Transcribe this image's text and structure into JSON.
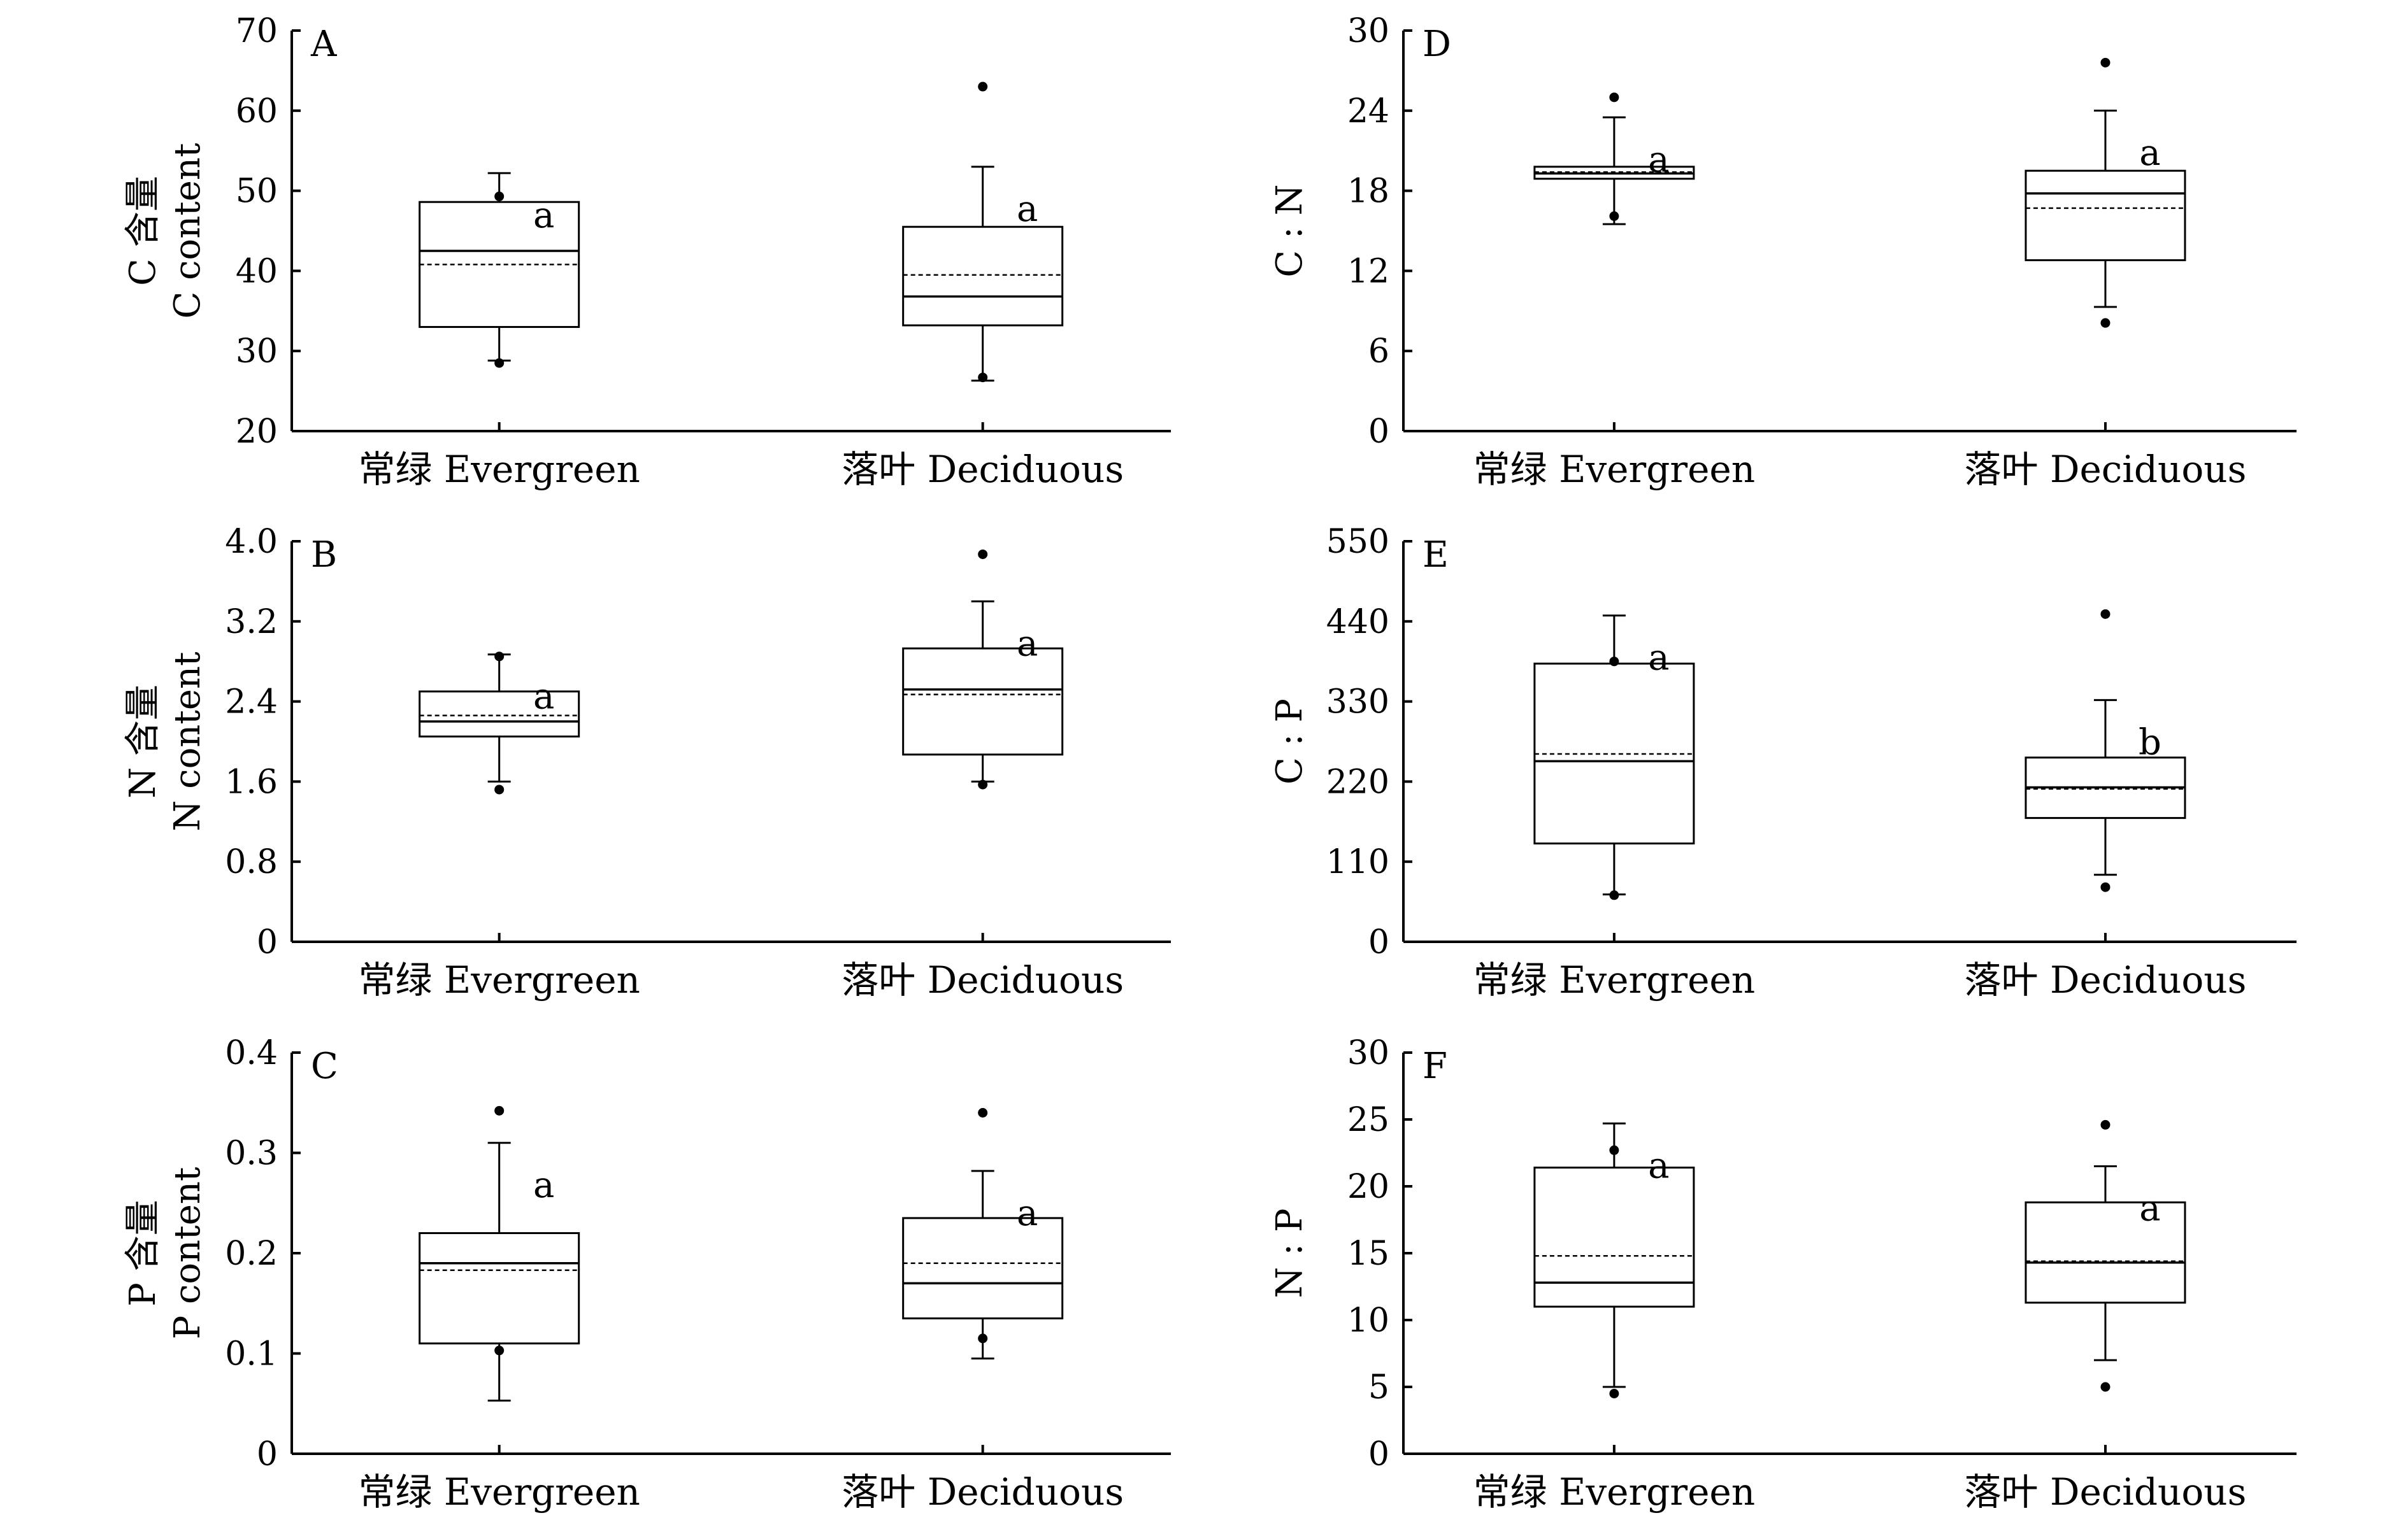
{
  "chart_data": [
    {
      "type": "box",
      "panel": "A",
      "ylabel_lines": [
        "C 含量",
        "C content"
      ],
      "ylim": [
        20,
        70
      ],
      "yticks": [
        20,
        30,
        40,
        50,
        60,
        70
      ],
      "categories": [
        "常绿 Evergreen",
        "落叶 Deciduous"
      ],
      "groups": [
        {
          "whisker_low": 28.8,
          "q1": 33.0,
          "median": 42.5,
          "mean": 40.8,
          "q3": 48.6,
          "whisker_high": 52.2,
          "outliers": [
            49.3,
            28.5
          ],
          "letter": "a"
        },
        {
          "whisker_low": 26.3,
          "q1": 33.2,
          "median": 36.8,
          "mean": 39.5,
          "q3": 45.5,
          "whisker_high": 53.0,
          "outliers": [
            63.0,
            26.7
          ],
          "letter": "a"
        }
      ]
    },
    {
      "type": "box",
      "panel": "B",
      "ylabel_lines": [
        "N 含量",
        "N content"
      ],
      "ylim": [
        0,
        4.0
      ],
      "yticks": [
        "0",
        "0.8",
        "1.6",
        "2.4",
        "3.2",
        "4.0"
      ],
      "categories": [
        "常绿 Evergreen",
        "落叶 Deciduous"
      ],
      "groups": [
        {
          "whisker_low": 1.6,
          "q1": 2.05,
          "median": 2.2,
          "mean": 2.26,
          "q3": 2.5,
          "whisker_high": 2.87,
          "outliers": [
            2.85,
            1.52
          ],
          "letter": "a"
        },
        {
          "whisker_low": 1.6,
          "q1": 1.87,
          "median": 2.52,
          "mean": 2.47,
          "q3": 2.93,
          "whisker_high": 3.4,
          "outliers": [
            3.87,
            1.57
          ],
          "letter": "a"
        }
      ]
    },
    {
      "type": "box",
      "panel": "C",
      "ylabel_lines": [
        "P 含量",
        "P content"
      ],
      "ylim": [
        0,
        0.4
      ],
      "yticks": [
        "0",
        "0.1",
        "0.2",
        "0.3",
        "0.4"
      ],
      "categories": [
        "常绿 Evergreen",
        "落叶 Deciduous"
      ],
      "groups": [
        {
          "whisker_low": 0.053,
          "q1": 0.11,
          "median": 0.19,
          "mean": 0.183,
          "q3": 0.22,
          "whisker_high": 0.31,
          "outliers": [
            0.342,
            0.103
          ],
          "letter": "a"
        },
        {
          "whisker_low": 0.095,
          "q1": 0.135,
          "median": 0.17,
          "mean": 0.19,
          "q3": 0.235,
          "whisker_high": 0.282,
          "outliers": [
            0.34,
            0.115
          ],
          "letter": "a"
        }
      ]
    },
    {
      "type": "box",
      "panel": "D",
      "ylabel_lines": [
        "C : N"
      ],
      "ylim": [
        0,
        30
      ],
      "yticks": [
        0,
        6,
        12,
        18,
        24,
        30
      ],
      "categories": [
        "常绿 Evergreen",
        "落叶 Deciduous"
      ],
      "groups": [
        {
          "whisker_low": 15.5,
          "q1": 18.9,
          "median": 19.3,
          "mean": 19.4,
          "q3": 19.8,
          "whisker_high": 23.5,
          "outliers": [
            25.0,
            16.1
          ],
          "letter": "a"
        },
        {
          "whisker_low": 9.3,
          "q1": 12.8,
          "median": 17.8,
          "mean": 16.7,
          "q3": 19.5,
          "whisker_high": 24.0,
          "outliers": [
            27.6,
            8.1
          ],
          "letter": "a"
        }
      ]
    },
    {
      "type": "box",
      "panel": "E",
      "ylabel_lines": [
        "C : P"
      ],
      "ylim": [
        0,
        550
      ],
      "yticks": [
        0,
        110,
        220,
        330,
        440,
        550
      ],
      "categories": [
        "常绿 Evergreen",
        "落叶 Deciduous"
      ],
      "groups": [
        {
          "whisker_low": 65,
          "q1": 135,
          "median": 248,
          "mean": 258,
          "q3": 382,
          "whisker_high": 448,
          "outliers": [
            385,
            64
          ],
          "letter": "a"
        },
        {
          "whisker_low": 92,
          "q1": 170,
          "median": 212,
          "mean": 210,
          "q3": 253,
          "whisker_high": 332,
          "outliers": [
            450,
            75
          ],
          "letter": "b"
        }
      ]
    },
    {
      "type": "box",
      "panel": "F",
      "ylabel_lines": [
        "N : P"
      ],
      "ylim": [
        0,
        30
      ],
      "yticks": [
        0,
        5,
        10,
        15,
        20,
        25,
        30
      ],
      "categories": [
        "常绿 Evergreen",
        "落叶 Deciduous"
      ],
      "groups": [
        {
          "whisker_low": 5.0,
          "q1": 11.0,
          "median": 12.8,
          "mean": 14.8,
          "q3": 21.4,
          "whisker_high": 24.7,
          "outliers": [
            22.7,
            4.5
          ],
          "letter": "a"
        },
        {
          "whisker_low": 7.0,
          "q1": 11.3,
          "median": 14.3,
          "mean": 14.4,
          "q3": 18.8,
          "whisker_high": 21.5,
          "outliers": [
            24.6,
            5.0
          ],
          "letter": "a"
        }
      ]
    }
  ]
}
